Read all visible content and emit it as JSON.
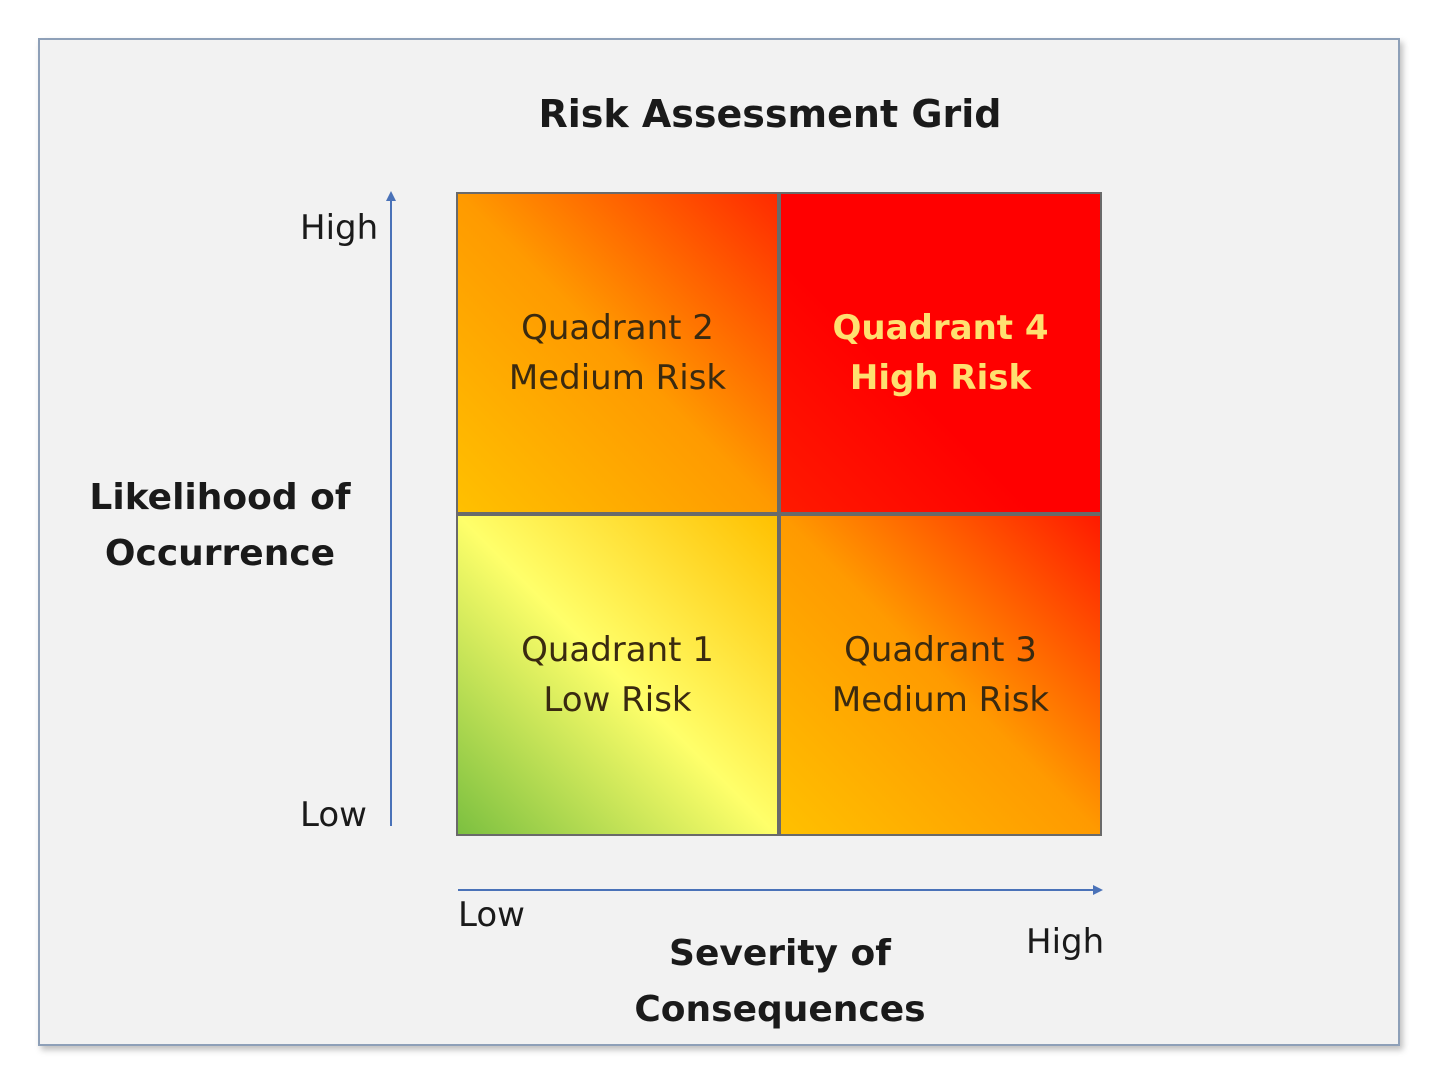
{
  "title": "Risk Assessment Grid",
  "y_axis": {
    "title_line1": "Likelihood of",
    "title_line2": "Occurrence",
    "high_label": "High",
    "low_label": "Low"
  },
  "x_axis": {
    "title_line1": "Severity of",
    "title_line2": "Consequences",
    "low_label": "Low",
    "high_label": "High"
  },
  "quadrants": {
    "q1": {
      "name": "Quadrant 1",
      "risk": "Low Risk"
    },
    "q2": {
      "name": "Quadrant 2",
      "risk": "Medium Risk"
    },
    "q3": {
      "name": "Quadrant 3",
      "risk": "Medium Risk"
    },
    "q4": {
      "name": "Quadrant 4",
      "risk": "High Risk"
    }
  },
  "colors": {
    "low": "#7cc040",
    "medium": "#ff9a00",
    "high": "#ff0000",
    "axis": "#4a72b8"
  }
}
